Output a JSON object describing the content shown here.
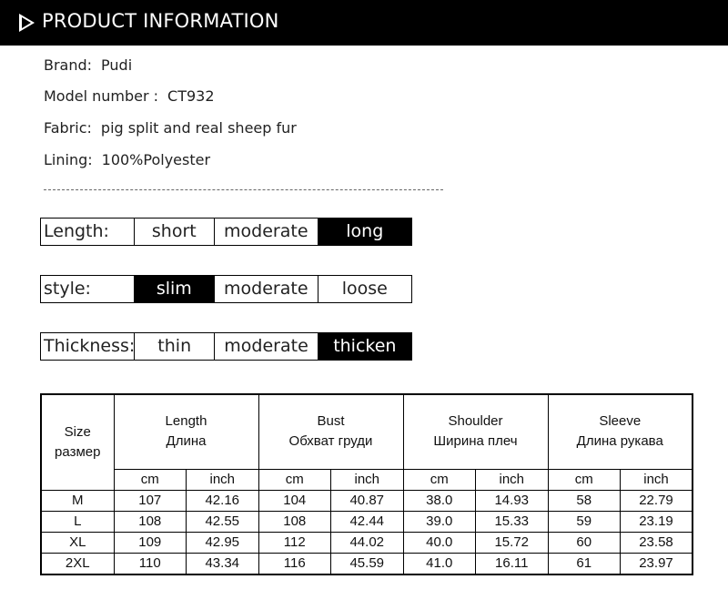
{
  "header": {
    "title": "PRODUCT INFORMATION",
    "icon": "play-triangle-icon"
  },
  "info": [
    {
      "label": "Brand:",
      "value": "Pudi"
    },
    {
      "label": "Model number :",
      "value": "CT932"
    },
    {
      "label": "Fabric:",
      "value": "pig split and real sheep fur"
    },
    {
      "label": "Lining:",
      "value": "100%Polyester"
    }
  ],
  "attributes": [
    {
      "label": "Length:",
      "options": [
        "short",
        "moderate",
        "long"
      ],
      "selected": "long"
    },
    {
      "label": "style:",
      "options": [
        "slim",
        "moderate",
        "loose"
      ],
      "selected": "slim"
    },
    {
      "label": "Thickness:",
      "options": [
        "thin",
        "moderate",
        "thicken"
      ],
      "selected": "thicken"
    }
  ],
  "size_table": {
    "size_header": [
      "Size",
      "размер"
    ],
    "groups": [
      {
        "en": "Length",
        "ru": "Длина"
      },
      {
        "en": "Bust",
        "ru": "Обхват груди"
      },
      {
        "en": "Shoulder",
        "ru": "Ширина плеч"
      },
      {
        "en": "Sleeve",
        "ru": "Длина рукава"
      }
    ],
    "units": [
      "cm",
      "inch"
    ],
    "rows": [
      [
        "M",
        "107",
        "42.16",
        "104",
        "40.87",
        "38.0",
        "14.93",
        "58",
        "22.79"
      ],
      [
        "L",
        "108",
        "42.55",
        "108",
        "42.44",
        "39.0",
        "15.33",
        "59",
        "23.19"
      ],
      [
        "XL",
        "109",
        "42.95",
        "112",
        "44.02",
        "40.0",
        "15.72",
        "60",
        "23.58"
      ],
      [
        "2XL",
        "110",
        "43.34",
        "116",
        "45.59",
        "41.0",
        "16.11",
        "61",
        "23.97"
      ]
    ]
  }
}
